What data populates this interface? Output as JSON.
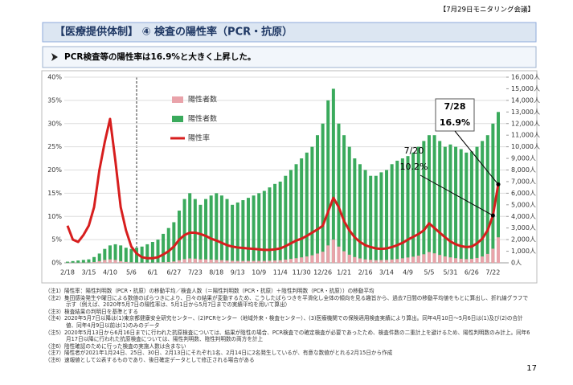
{
  "header": {
    "meeting": "【7月29日モニタリング会議】",
    "title": "【医療提供体制】 ④ 検査の陽性率（PCR・抗原）",
    "summary": "PCR検査等の陽性率は16.9%と大きく上昇した。"
  },
  "chart_data": {
    "type": "bar-line",
    "categories": [
      "2/18",
      null,
      null,
      null,
      "3/15",
      null,
      null,
      null,
      "4/10",
      null,
      null,
      null,
      "5/6",
      null,
      null,
      null,
      "6/1",
      null,
      null,
      null,
      "6/27",
      null,
      null,
      null,
      "7/23",
      null,
      null,
      null,
      "8/18",
      null,
      null,
      null,
      "9/13",
      null,
      null,
      null,
      "10/9",
      null,
      null,
      null,
      "11/4",
      null,
      null,
      null,
      "11/30",
      null,
      null,
      null,
      "12/26",
      null,
      null,
      null,
      "1/21",
      null,
      null,
      null,
      "2/16",
      null,
      null,
      null,
      "3/14",
      null,
      null,
      null,
      "4/9",
      null,
      null,
      null,
      "5/5",
      null,
      null,
      null,
      "5/31",
      null,
      null,
      null,
      "6/26",
      null,
      null,
      null,
      "7/22",
      null
    ],
    "series": [
      {
        "name": "陽性者数",
        "color": "#3aaa5c",
        "axis": "y2",
        "kind": "bar",
        "values": [
          100,
          150,
          200,
          250,
          300,
          500,
          800,
          1200,
          1500,
          1600,
          1500,
          1300,
          1200,
          1300,
          1400,
          1600,
          1800,
          2000,
          2500,
          3000,
          3500,
          4500,
          5500,
          6000,
          5500,
          5000,
          5500,
          5800,
          6000,
          5800,
          5500,
          5000,
          5200,
          5400,
          5600,
          5800,
          6000,
          6200,
          6500,
          6800,
          7000,
          7500,
          8000,
          8500,
          9000,
          9500,
          10000,
          11000,
          12000,
          14000,
          15000,
          12000,
          11000,
          10000,
          9000,
          8500,
          8000,
          7500,
          7500,
          7800,
          8000,
          8500,
          8800,
          9000,
          9200,
          9500,
          10000,
          10500,
          11000,
          11000,
          10500,
          10000,
          10200,
          10000,
          9800,
          9500,
          9600,
          10000,
          10500,
          11000,
          12000,
          13000
        ]
      },
      {
        "name": "陽性者数",
        "color": "#e9a3aa",
        "axis": "y2",
        "kind": "bar",
        "values": [
          10,
          10,
          10,
          15,
          25,
          60,
          150,
          250,
          300,
          250,
          150,
          80,
          40,
          20,
          15,
          15,
          15,
          25,
          45,
          75,
          120,
          220,
          320,
          380,
          360,
          300,
          300,
          280,
          260,
          230,
          200,
          180,
          170,
          170,
          170,
          170,
          170,
          170,
          180,
          200,
          220,
          280,
          340,
          400,
          470,
          550,
          650,
          800,
          960,
          1500,
          2000,
          1400,
          1000,
          700,
          500,
          380,
          300,
          260,
          230,
          240,
          250,
          290,
          330,
          390,
          460,
          530,
          620,
          740,
          930,
          820,
          680,
          550,
          470,
          400,
          350,
          320,
          340,
          420,
          550,
          770,
          1220,
          2200
        ]
      },
      {
        "name": "陽性率",
        "color": "#d71e1e",
        "axis": "y",
        "kind": "line",
        "values": [
          8,
          5,
          4.5,
          6,
          8,
          12,
          20,
          26,
          31,
          22,
          12,
          7,
          3.5,
          2,
          1.2,
          1,
          1,
          1.2,
          1.8,
          2.5,
          3.5,
          5,
          6,
          6.5,
          6.5,
          6.2,
          5.8,
          5.2,
          4.8,
          4.3,
          3.8,
          3.5,
          3.3,
          3.2,
          3.1,
          3,
          2.9,
          2.8,
          2.8,
          2.9,
          3.1,
          3.6,
          4.2,
          4.8,
          5.2,
          5.8,
          6.5,
          7.2,
          8,
          11,
          14,
          12,
          9,
          7,
          5.5,
          4.5,
          3.8,
          3.4,
          3.1,
          3,
          3.1,
          3.4,
          3.8,
          4.3,
          5,
          5.6,
          6.2,
          7,
          8.5,
          7.5,
          6.5,
          5.5,
          4.6,
          4,
          3.6,
          3.4,
          3.5,
          4.2,
          5.2,
          7,
          10.2,
          16.9
        ]
      }
    ],
    "ylim": [
      0,
      40
    ],
    "yticks": [
      {
        "value": 0,
        "label": "0%"
      },
      {
        "value": 5,
        "label": "5%"
      },
      {
        "value": 10,
        "label": "10%"
      },
      {
        "value": 15,
        "label": "15%"
      },
      {
        "value": 20,
        "label": "20%"
      },
      {
        "value": 25,
        "label": "25%"
      },
      {
        "value": 30,
        "label": "30%"
      },
      {
        "value": 35,
        "label": "35%"
      },
      {
        "value": 40,
        "label": "40%"
      }
    ],
    "y2lim": [
      0,
      16000
    ],
    "y2ticks": [
      {
        "value": 0,
        "label": "0人"
      },
      {
        "value": 1000,
        "label": "1,000人"
      },
      {
        "value": 2000,
        "label": "2,000人"
      },
      {
        "value": 3000,
        "label": "3,000人"
      },
      {
        "value": 4000,
        "label": "4,000人"
      },
      {
        "value": 5000,
        "label": "5,000人"
      },
      {
        "value": 6000,
        "label": "6,000人"
      },
      {
        "value": 7000,
        "label": "7,000人"
      },
      {
        "value": 8000,
        "label": "8,000人"
      },
      {
        "value": 9000,
        "label": "9,000人"
      },
      {
        "value": 10000,
        "label": "10,000人"
      },
      {
        "value": 11000,
        "label": "11,000人"
      },
      {
        "value": 12000,
        "label": "12,000人"
      },
      {
        "value": 13000,
        "label": "13,000人"
      },
      {
        "value": 14000,
        "label": "14,000人"
      },
      {
        "value": 15000,
        "label": "15,000人"
      },
      {
        "value": 16000,
        "label": "16,000人"
      }
    ],
    "legend": "upper left",
    "annotations": [
      [
        "7/20",
        "10.2%"
      ],
      [
        "7/28",
        "16.9%"
      ]
    ]
  },
  "notes": [
    "（注1）陽性率：陽性判明数（PCR・抗原）の移動平均／検査人数（＝陽性判明数（PCR・抗原）＋陰性判明数（PCR・抗原））の移動平均",
    "（注2）集団感染発生や曜日による数値のばらつきにより、日々の結果が変動するため、こうしたばらつきを平滑化し全体の傾向を見る趣旨から、過去7日間の移動平均値をもとに算出し、折れ線グラフで示す（例えば、2020年5月7日の陽性率は、5月1日から5月7日までの実績平均を用いて算出）",
    "（注3）検査結果の判明日を基準とする",
    "（注4）2020年5月7日以降は(1)東京都健康安全研究センター、(2)PCRセンター（地域外来・検査センター）、(3)医療機関での保険適用検査実績により算出。同年4月10日～5月6日は(1)及び(2)の合計値、同年4月9日以前は(1)のみのデータ",
    "（注5）2020年5月13日から6月16日までに行われた抗原検査については、結果が陰性の場合、PCR検査での確定検査が必要であったため、検査件数の二重計上を避けるため、陽性判明数のみ計上。同年6月17日以降に行われた抗原検査については、陽性判明数、陰性判明数の両方を計上",
    "（注6）陰性確認のために行った検査の実施人数は含まない",
    "（注7）陽性者が2021年1月24日、25日、30日、2月13日にそれぞれ1名、2月14日に2名発生しているが、有意な数値がとれる2月15日から作成",
    "（注8）速報値として公表するものであり、後日確定データとして修正される場合がある"
  ],
  "page_number": "17"
}
